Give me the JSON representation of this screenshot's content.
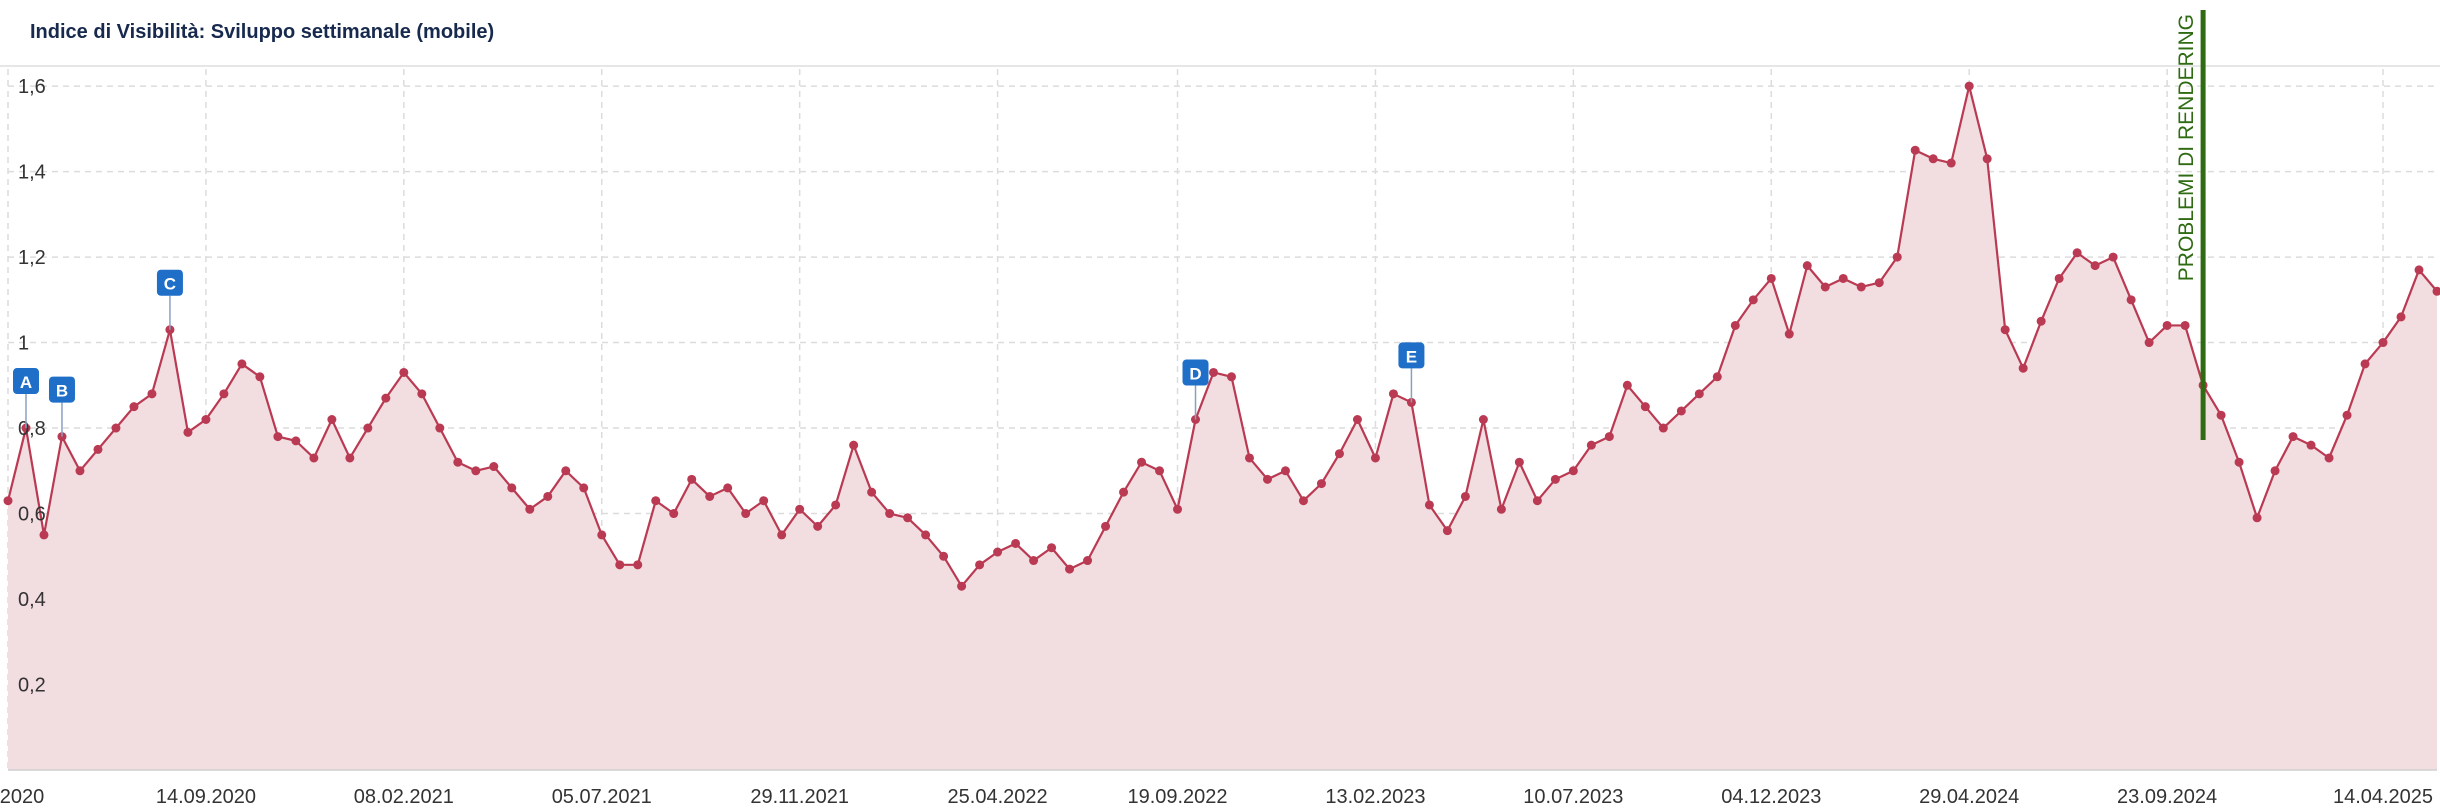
{
  "chart_data": {
    "type": "area",
    "title": "Indice di Visibilità: Sviluppo settimanale (mobile)",
    "categories": [
      "2020",
      null,
      null,
      null,
      null,
      null,
      null,
      null,
      null,
      null,
      null,
      "14.09.2020",
      null,
      null,
      null,
      null,
      null,
      null,
      null,
      null,
      null,
      null,
      "08.02.2021",
      null,
      null,
      null,
      null,
      null,
      null,
      null,
      null,
      null,
      null,
      "05.07.2021",
      null,
      null,
      null,
      null,
      null,
      null,
      null,
      null,
      null,
      null,
      "29.11.2021",
      null,
      null,
      null,
      null,
      null,
      null,
      null,
      null,
      null,
      null,
      "25.04.2022",
      null,
      null,
      null,
      null,
      null,
      null,
      null,
      null,
      null,
      "19.09.2022",
      null,
      null,
      null,
      null,
      null,
      null,
      null,
      null,
      null,
      null,
      "13.02.2023",
      null,
      null,
      null,
      null,
      null,
      null,
      null,
      null,
      null,
      null,
      "10.07.2023",
      null,
      null,
      null,
      null,
      null,
      null,
      null,
      null,
      null,
      null,
      "04.12.2023",
      null,
      null,
      null,
      null,
      null,
      null,
      null,
      null,
      null,
      null,
      "29.04.2024",
      null,
      null,
      null,
      null,
      null,
      null,
      null,
      null,
      null,
      null,
      "23.09.2024",
      null,
      null,
      null,
      null,
      null,
      null,
      null,
      null,
      null,
      null,
      null,
      "14.04.2025",
      null,
      null,
      null
    ],
    "values": [
      0.63,
      0.8,
      0.55,
      0.78,
      0.7,
      0.75,
      0.8,
      0.85,
      0.88,
      1.03,
      0.79,
      0.82,
      0.88,
      0.95,
      0.92,
      0.78,
      0.77,
      0.73,
      0.82,
      0.73,
      0.8,
      0.87,
      0.93,
      0.88,
      0.8,
      0.72,
      0.7,
      0.71,
      0.66,
      0.61,
      0.64,
      0.7,
      0.66,
      0.55,
      0.48,
      0.48,
      0.63,
      0.6,
      0.68,
      0.64,
      0.66,
      0.6,
      0.63,
      0.55,
      0.61,
      0.57,
      0.62,
      0.76,
      0.65,
      0.6,
      0.59,
      0.55,
      0.5,
      0.43,
      0.48,
      0.51,
      0.53,
      0.49,
      0.52,
      0.47,
      0.49,
      0.57,
      0.65,
      0.72,
      0.7,
      0.61,
      0.82,
      0.93,
      0.92,
      0.73,
      0.68,
      0.7,
      0.63,
      0.67,
      0.74,
      0.82,
      0.73,
      0.88,
      0.86,
      0.62,
      0.56,
      0.64,
      0.82,
      0.61,
      0.72,
      0.63,
      0.68,
      0.7,
      0.76,
      0.78,
      0.9,
      0.85,
      0.8,
      0.84,
      0.88,
      0.92,
      1.04,
      1.1,
      1.15,
      1.02,
      1.18,
      1.13,
      1.15,
      1.13,
      1.14,
      1.2,
      1.45,
      1.43,
      1.42,
      1.6,
      1.43,
      1.03,
      0.94,
      1.05,
      1.15,
      1.21,
      1.18,
      1.2,
      1.1,
      1.0,
      1.04,
      1.04,
      0.9,
      0.83,
      0.72,
      0.59,
      0.7,
      0.78,
      0.76,
      0.73,
      0.83,
      0.95,
      1.0,
      1.06,
      1.17,
      1.12
    ],
    "color": "#b93a52",
    "fill": "#f2dde0",
    "ylim": [
      0,
      1.64
    ],
    "yticks": [
      {
        "value": 0.2,
        "label": "0,2"
      },
      {
        "value": 0.4,
        "label": "0,4"
      },
      {
        "value": 0.6,
        "label": "0,6"
      },
      {
        "value": 0.8,
        "label": "0,8"
      },
      1,
      {
        "value": 1.2,
        "label": "1,2"
      },
      {
        "value": 1.4,
        "label": "1,4"
      },
      {
        "value": 1.6,
        "label": "1,6"
      }
    ],
    "grid": true,
    "flags": [
      {
        "label": "A",
        "at": 1
      },
      {
        "label": "B",
        "at": 3
      },
      {
        "label": "C",
        "at": 9
      },
      {
        "label": "D",
        "at": 66
      },
      {
        "label": "E",
        "at": 78
      }
    ],
    "annotation": {
      "text": "PROBLEMI DI RENDERING",
      "at": 122,
      "color": "#2f6b12"
    }
  }
}
